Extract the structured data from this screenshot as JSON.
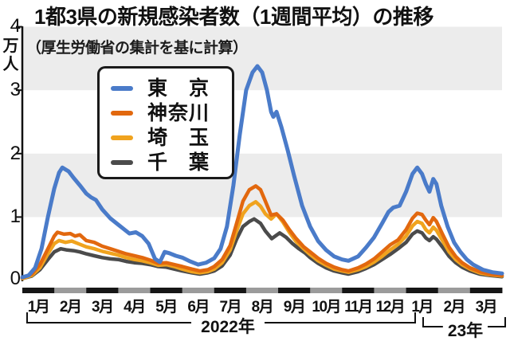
{
  "title": "1都3県の新規感染者数（1週間平均）の推移",
  "subtitle": "（厚生労働省の集計を基に計算）",
  "y_axis": {
    "unit_line1": "万",
    "unit_line2": "人",
    "ticks": [
      "4",
      "3",
      "2",
      "1",
      "0"
    ]
  },
  "legend": {
    "items": [
      {
        "id": "tokyo",
        "label": "東　京",
        "color": "#4a7bc9"
      },
      {
        "id": "kanagawa",
        "label": "神奈川",
        "color": "#e2680e"
      },
      {
        "id": "saitama",
        "label": "埼　玉",
        "color": "#f0a31e"
      },
      {
        "id": "chiba",
        "label": "千　葉",
        "color": "#4b4b4b"
      }
    ]
  },
  "x_axis": {
    "year_left": "2022年",
    "year_right": "23年"
  },
  "colors": {
    "band": "#ececec",
    "axis": "#111111",
    "bar_dark": "#161616",
    "bar_light": "#9b9b9b",
    "bracket": "#111111"
  },
  "chart_data": {
    "type": "line",
    "title": "1都3県の新規感染者数（1週間平均）の推移",
    "subtitle": "（厚生労働省の集計を基に計算）",
    "ylabel": "万人",
    "ylim": [
      0,
      4
    ],
    "y_ticks": [
      0,
      1,
      2,
      3,
      4
    ],
    "grid": "alternating horizontal gray bands (1-2 and 3-4)",
    "legend_position": "upper-left box",
    "x_unit": "months since 2022-01-01 (0 = Jan 2022, 14 = Mar 2023)",
    "x_labels": [
      "1月",
      "2月",
      "3月",
      "4月",
      "5月",
      "6月",
      "7月",
      "8月",
      "9月",
      "10月",
      "11月",
      "12月",
      "1月",
      "2月",
      "3月"
    ],
    "x_groups": [
      {
        "label": "2022年",
        "months": [
          0,
          11
        ]
      },
      {
        "label": "23年",
        "months": [
          12,
          14
        ]
      }
    ],
    "series": [
      {
        "id": "chiba",
        "name": "千葉",
        "color": "#4b4b4b",
        "points": [
          [
            0,
            0.03
          ],
          [
            0.3,
            0.07
          ],
          [
            0.55,
            0.17
          ],
          [
            0.8,
            0.33
          ],
          [
            1,
            0.45
          ],
          [
            1.2,
            0.5
          ],
          [
            1.4,
            0.48
          ],
          [
            1.6,
            0.47
          ],
          [
            1.8,
            0.45
          ],
          [
            2,
            0.42
          ],
          [
            2.25,
            0.39
          ],
          [
            2.5,
            0.36
          ],
          [
            2.75,
            0.34
          ],
          [
            3,
            0.33
          ],
          [
            3.25,
            0.3
          ],
          [
            3.5,
            0.28
          ],
          [
            3.75,
            0.27
          ],
          [
            4,
            0.25
          ],
          [
            4.25,
            0.22
          ],
          [
            4.5,
            0.21
          ],
          [
            4.75,
            0.18
          ],
          [
            5,
            0.15
          ],
          [
            5.3,
            0.12
          ],
          [
            5.55,
            0.1
          ],
          [
            5.8,
            0.12
          ],
          [
            6,
            0.15
          ],
          [
            6.25,
            0.23
          ],
          [
            6.5,
            0.4
          ],
          [
            6.7,
            0.65
          ],
          [
            6.9,
            0.85
          ],
          [
            7.1,
            0.93
          ],
          [
            7.25,
            0.97
          ],
          [
            7.45,
            0.9
          ],
          [
            7.6,
            0.78
          ],
          [
            7.8,
            0.66
          ],
          [
            8.05,
            0.75
          ],
          [
            8.25,
            0.68
          ],
          [
            8.45,
            0.58
          ],
          [
            8.65,
            0.5
          ],
          [
            8.85,
            0.43
          ],
          [
            9,
            0.36
          ],
          [
            9.25,
            0.27
          ],
          [
            9.5,
            0.2
          ],
          [
            9.75,
            0.15
          ],
          [
            10,
            0.12
          ],
          [
            10.2,
            0.1
          ],
          [
            10.5,
            0.14
          ],
          [
            10.75,
            0.19
          ],
          [
            11,
            0.25
          ],
          [
            11.25,
            0.33
          ],
          [
            11.5,
            0.41
          ],
          [
            11.75,
            0.5
          ],
          [
            12,
            0.6
          ],
          [
            12.2,
            0.73
          ],
          [
            12.35,
            0.78
          ],
          [
            12.5,
            0.75
          ],
          [
            12.62,
            0.67
          ],
          [
            12.73,
            0.63
          ],
          [
            12.85,
            0.69
          ],
          [
            12.95,
            0.65
          ],
          [
            13.15,
            0.52
          ],
          [
            13.35,
            0.38
          ],
          [
            13.55,
            0.28
          ],
          [
            13.75,
            0.21
          ],
          [
            14,
            0.15
          ],
          [
            14.3,
            0.1
          ],
          [
            14.6,
            0.08
          ],
          [
            15,
            0.06
          ]
        ]
      },
      {
        "id": "saitama",
        "name": "埼玉",
        "color": "#f0a31e",
        "points": [
          [
            0,
            0.03
          ],
          [
            0.3,
            0.08
          ],
          [
            0.55,
            0.2
          ],
          [
            0.8,
            0.42
          ],
          [
            1,
            0.58
          ],
          [
            1.15,
            0.63
          ],
          [
            1.35,
            0.6
          ],
          [
            1.55,
            0.62
          ],
          [
            1.75,
            0.58
          ],
          [
            2,
            0.53
          ],
          [
            2.25,
            0.5
          ],
          [
            2.5,
            0.46
          ],
          [
            2.75,
            0.43
          ],
          [
            3,
            0.4
          ],
          [
            3.25,
            0.36
          ],
          [
            3.5,
            0.33
          ],
          [
            3.75,
            0.31
          ],
          [
            4,
            0.28
          ],
          [
            4.25,
            0.24
          ],
          [
            4.5,
            0.25
          ],
          [
            4.75,
            0.22
          ],
          [
            5,
            0.18
          ],
          [
            5.3,
            0.14
          ],
          [
            5.55,
            0.12
          ],
          [
            5.8,
            0.14
          ],
          [
            6,
            0.18
          ],
          [
            6.25,
            0.28
          ],
          [
            6.5,
            0.48
          ],
          [
            6.7,
            0.78
          ],
          [
            6.9,
            1.05
          ],
          [
            7.1,
            1.18
          ],
          [
            7.3,
            1.24
          ],
          [
            7.45,
            1.17
          ],
          [
            7.6,
            1.05
          ],
          [
            7.78,
            0.97
          ],
          [
            7.95,
            1.05
          ],
          [
            8.15,
            0.92
          ],
          [
            8.35,
            0.76
          ],
          [
            8.55,
            0.62
          ],
          [
            8.8,
            0.5
          ],
          [
            9,
            0.41
          ],
          [
            9.25,
            0.31
          ],
          [
            9.5,
            0.24
          ],
          [
            9.75,
            0.18
          ],
          [
            10,
            0.15
          ],
          [
            10.2,
            0.13
          ],
          [
            10.5,
            0.17
          ],
          [
            10.75,
            0.22
          ],
          [
            11,
            0.29
          ],
          [
            11.25,
            0.38
          ],
          [
            11.5,
            0.48
          ],
          [
            11.75,
            0.57
          ],
          [
            12,
            0.7
          ],
          [
            12.2,
            0.86
          ],
          [
            12.35,
            0.93
          ],
          [
            12.5,
            0.9
          ],
          [
            12.62,
            0.8
          ],
          [
            12.73,
            0.75
          ],
          [
            12.85,
            0.84
          ],
          [
            12.95,
            0.79
          ],
          [
            13.15,
            0.62
          ],
          [
            13.35,
            0.45
          ],
          [
            13.55,
            0.33
          ],
          [
            13.75,
            0.25
          ],
          [
            14,
            0.18
          ],
          [
            14.3,
            0.12
          ],
          [
            14.6,
            0.09
          ],
          [
            15,
            0.07
          ]
        ]
      },
      {
        "id": "kanagawa",
        "name": "神奈川",
        "color": "#e2680e",
        "points": [
          [
            0,
            0.04
          ],
          [
            0.3,
            0.1
          ],
          [
            0.55,
            0.25
          ],
          [
            0.8,
            0.5
          ],
          [
            1,
            0.7
          ],
          [
            1.1,
            0.76
          ],
          [
            1.3,
            0.73
          ],
          [
            1.5,
            0.74
          ],
          [
            1.65,
            0.7
          ],
          [
            1.8,
            0.72
          ],
          [
            2,
            0.63
          ],
          [
            2.25,
            0.6
          ],
          [
            2.5,
            0.54
          ],
          [
            2.75,
            0.5
          ],
          [
            3,
            0.46
          ],
          [
            3.25,
            0.42
          ],
          [
            3.5,
            0.39
          ],
          [
            3.75,
            0.36
          ],
          [
            4,
            0.32
          ],
          [
            4.25,
            0.27
          ],
          [
            4.5,
            0.28
          ],
          [
            4.75,
            0.25
          ],
          [
            5,
            0.22
          ],
          [
            5.3,
            0.18
          ],
          [
            5.55,
            0.15
          ],
          [
            5.8,
            0.17
          ],
          [
            6,
            0.22
          ],
          [
            6.25,
            0.33
          ],
          [
            6.5,
            0.55
          ],
          [
            6.7,
            0.9
          ],
          [
            6.9,
            1.25
          ],
          [
            7.1,
            1.43
          ],
          [
            7.3,
            1.49
          ],
          [
            7.45,
            1.43
          ],
          [
            7.6,
            1.25
          ],
          [
            7.78,
            1.03
          ],
          [
            7.95,
            1.05
          ],
          [
            8.15,
            0.95
          ],
          [
            8.35,
            0.8
          ],
          [
            8.55,
            0.67
          ],
          [
            8.8,
            0.53
          ],
          [
            9,
            0.45
          ],
          [
            9.25,
            0.35
          ],
          [
            9.5,
            0.27
          ],
          [
            9.75,
            0.21
          ],
          [
            10,
            0.17
          ],
          [
            10.2,
            0.15
          ],
          [
            10.5,
            0.2
          ],
          [
            10.75,
            0.26
          ],
          [
            11,
            0.34
          ],
          [
            11.25,
            0.45
          ],
          [
            11.5,
            0.56
          ],
          [
            11.75,
            0.64
          ],
          [
            12,
            0.8
          ],
          [
            12.2,
            0.98
          ],
          [
            12.35,
            1.06
          ],
          [
            12.5,
            1.04
          ],
          [
            12.62,
            0.95
          ],
          [
            12.73,
            0.88
          ],
          [
            12.85,
            0.99
          ],
          [
            12.95,
            0.93
          ],
          [
            13.15,
            0.72
          ],
          [
            13.35,
            0.52
          ],
          [
            13.55,
            0.38
          ],
          [
            13.75,
            0.28
          ],
          [
            14,
            0.2
          ],
          [
            14.3,
            0.14
          ],
          [
            14.6,
            0.1
          ],
          [
            15,
            0.08
          ]
        ]
      },
      {
        "id": "tokyo",
        "name": "東京",
        "color": "#4a7bc9",
        "points": [
          [
            0,
            0.05
          ],
          [
            0.2,
            0.08
          ],
          [
            0.4,
            0.2
          ],
          [
            0.6,
            0.5
          ],
          [
            0.8,
            1
          ],
          [
            1,
            1.45
          ],
          [
            1.15,
            1.7
          ],
          [
            1.25,
            1.78
          ],
          [
            1.45,
            1.72
          ],
          [
            1.6,
            1.62
          ],
          [
            1.8,
            1.5
          ],
          [
            2,
            1.37
          ],
          [
            2.15,
            1.31
          ],
          [
            2.3,
            1.27
          ],
          [
            2.5,
            1.12
          ],
          [
            2.75,
            0.98
          ],
          [
            3,
            0.88
          ],
          [
            3.2,
            0.8
          ],
          [
            3.35,
            0.74
          ],
          [
            3.55,
            0.76
          ],
          [
            3.75,
            0.7
          ],
          [
            3.95,
            0.58
          ],
          [
            4.15,
            0.34
          ],
          [
            4.3,
            0.29
          ],
          [
            4.45,
            0.45
          ],
          [
            4.6,
            0.43
          ],
          [
            4.8,
            0.39
          ],
          [
            5,
            0.36
          ],
          [
            5.25,
            0.3
          ],
          [
            5.5,
            0.25
          ],
          [
            5.75,
            0.28
          ],
          [
            6,
            0.35
          ],
          [
            6.2,
            0.5
          ],
          [
            6.4,
            0.85
          ],
          [
            6.6,
            1.5
          ],
          [
            6.8,
            2.3
          ],
          [
            7,
            3
          ],
          [
            7.2,
            3.28
          ],
          [
            7.35,
            3.38
          ],
          [
            7.5,
            3.28
          ],
          [
            7.65,
            3
          ],
          [
            7.78,
            2.66
          ],
          [
            7.85,
            2.58
          ],
          [
            7.95,
            2.66
          ],
          [
            8.1,
            2.42
          ],
          [
            8.3,
            2.05
          ],
          [
            8.5,
            1.65
          ],
          [
            8.75,
            1.18
          ],
          [
            9,
            0.85
          ],
          [
            9.25,
            0.62
          ],
          [
            9.5,
            0.48
          ],
          [
            9.75,
            0.38
          ],
          [
            10,
            0.33
          ],
          [
            10.2,
            0.31
          ],
          [
            10.5,
            0.38
          ],
          [
            10.75,
            0.52
          ],
          [
            11,
            0.68
          ],
          [
            11.25,
            0.9
          ],
          [
            11.45,
            1.08
          ],
          [
            11.6,
            1.15
          ],
          [
            11.8,
            1.18
          ],
          [
            12,
            1.4
          ],
          [
            12.2,
            1.68
          ],
          [
            12.35,
            1.78
          ],
          [
            12.5,
            1.68
          ],
          [
            12.62,
            1.52
          ],
          [
            12.73,
            1.4
          ],
          [
            12.85,
            1.6
          ],
          [
            12.95,
            1.52
          ],
          [
            13.1,
            1.18
          ],
          [
            13.3,
            0.85
          ],
          [
            13.5,
            0.6
          ],
          [
            13.7,
            0.45
          ],
          [
            13.9,
            0.33
          ],
          [
            14.1,
            0.25
          ],
          [
            14.4,
            0.17
          ],
          [
            14.7,
            0.13
          ],
          [
            15,
            0.11
          ]
        ]
      }
    ]
  }
}
